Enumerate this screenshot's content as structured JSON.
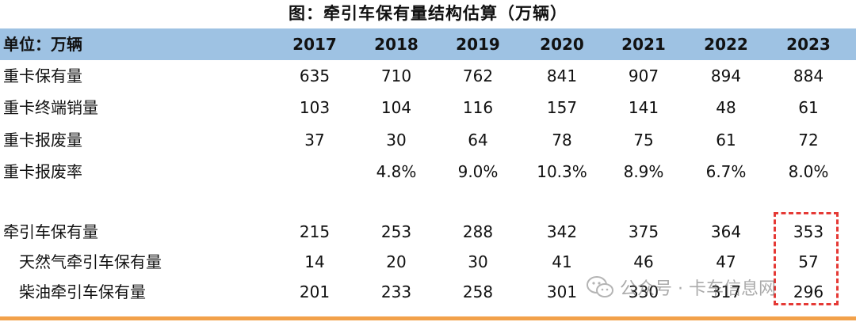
{
  "title": "图：牵引车保有量结构估算（万辆）",
  "header": {
    "unit_label": "单位：万辆",
    "years": [
      "2017",
      "2018",
      "2019",
      "2020",
      "2021",
      "2022",
      "2023"
    ]
  },
  "rows": [
    {
      "label": "重卡保有量",
      "values": [
        "635",
        "710",
        "762",
        "841",
        "907",
        "894",
        "884"
      ]
    },
    {
      "label": "重卡终端销量",
      "values": [
        "103",
        "104",
        "116",
        "157",
        "141",
        "48",
        "61"
      ]
    },
    {
      "label": "重卡报废量",
      "values": [
        "37",
        "30",
        "64",
        "78",
        "75",
        "61",
        "72"
      ]
    },
    {
      "label": "重卡报废率",
      "values": [
        "",
        "4.8%",
        "9.0%",
        "10.3%",
        "8.9%",
        "6.7%",
        "8.0%"
      ]
    },
    {
      "label": "牵引车保有量",
      "values": [
        "215",
        "253",
        "288",
        "342",
        "375",
        "364",
        "353"
      ]
    },
    {
      "label": "天然气牵引车保有量",
      "values": [
        "14",
        "20",
        "30",
        "41",
        "46",
        "47",
        "57"
      ]
    },
    {
      "label": "柴油牵引车保有量",
      "values": [
        "201",
        "233",
        "258",
        "301",
        "330",
        "317",
        "296"
      ]
    }
  ],
  "watermark": {
    "text": "公众号 · 卡车信息网",
    "icon": "wechat-icon"
  },
  "colors": {
    "header_bg": "#9ec2e3",
    "highlight_border": "#e53935",
    "bottom_rule": "#f2a14a"
  }
}
